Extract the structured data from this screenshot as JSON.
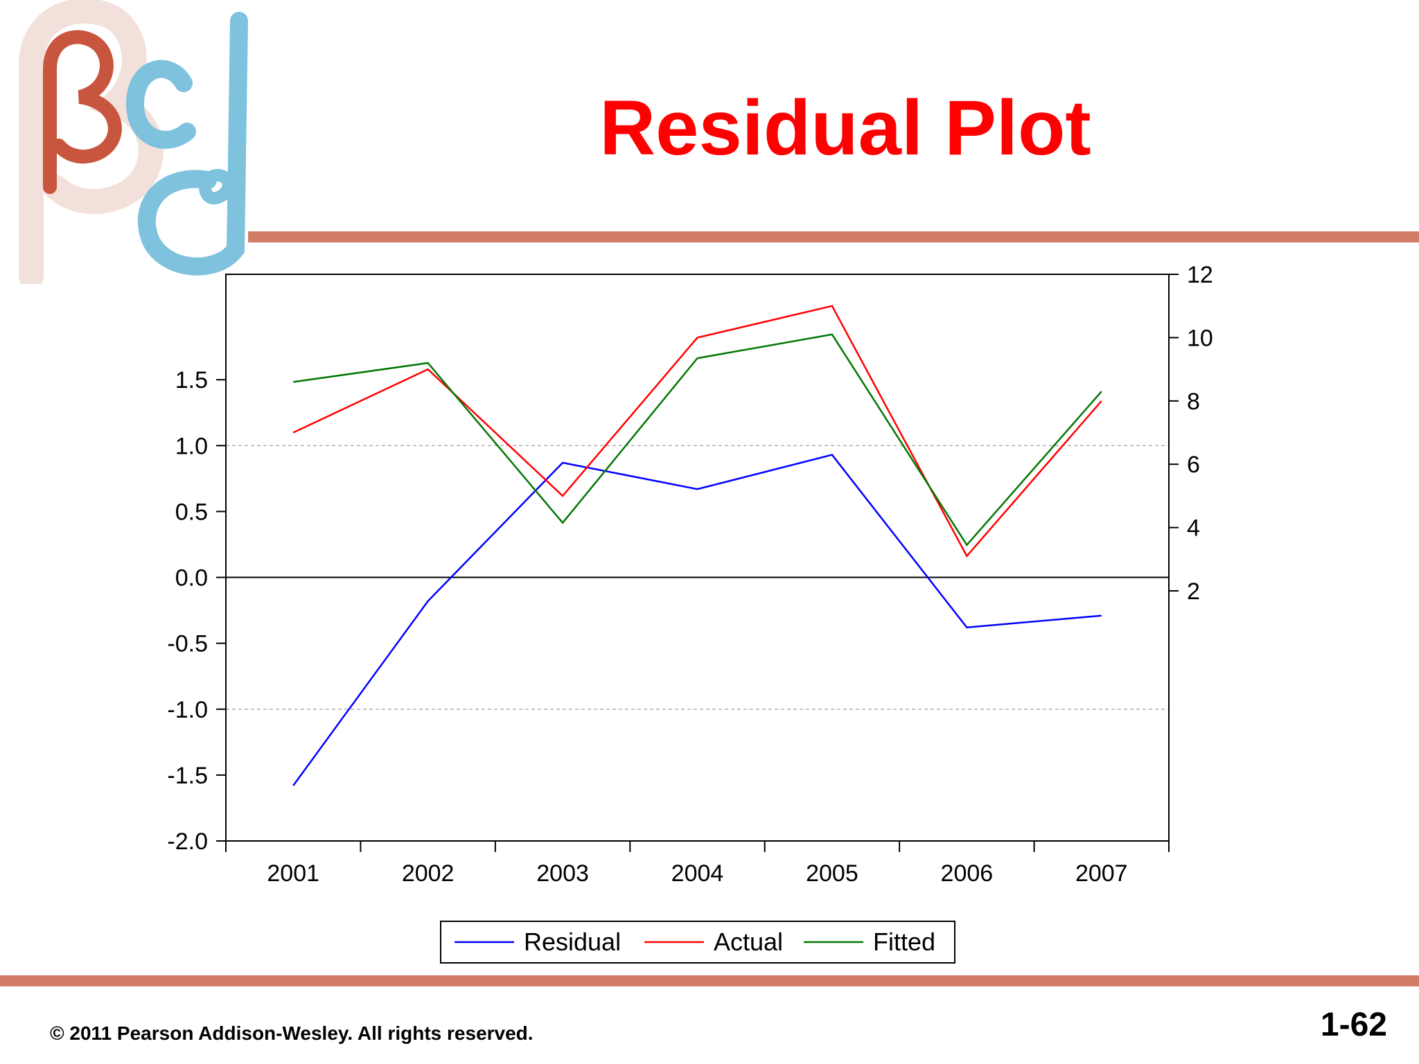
{
  "slide": {
    "title": "Residual Plot",
    "copyright": "© 2011 Pearson Addison-Wesley. All rights reserved.",
    "page_number": "1-62"
  },
  "logo": {
    "icon": "beta-logo-icon",
    "colors": {
      "beta": "#c8553d",
      "shadow": "#f2e0da",
      "blue": "#7fc2de"
    }
  },
  "colors": {
    "title": "#ff0000",
    "rule": "#d37c67"
  },
  "chart_data": {
    "type": "line",
    "x": [
      "2001",
      "2002",
      "2003",
      "2004",
      "2005",
      "2006",
      "2007"
    ],
    "left_axis": {
      "range": [
        -2.0,
        2.3
      ],
      "ticks": [
        "1.5",
        "1.0",
        "0.5",
        "0.0",
        "-0.5",
        "-1.0",
        "-1.5",
        "-2.0"
      ],
      "tick_values": [
        1.5,
        1.0,
        0.5,
        0.0,
        -0.5,
        -1.0,
        -1.5,
        -2.0
      ]
    },
    "right_axis": {
      "range": [
        -5.9,
        12
      ],
      "ticks": [
        "12",
        "10",
        "8",
        "6",
        "4",
        "2"
      ],
      "tick_values": [
        12,
        10,
        8,
        6,
        4,
        2
      ]
    },
    "grid": {
      "dashed_left_values": [
        1.0,
        -1.0
      ],
      "zero_line": 0.0
    },
    "series": [
      {
        "name": "Residual",
        "axis": "left",
        "color": "#0000ff",
        "values": [
          -1.58,
          -0.18,
          0.87,
          0.67,
          0.93,
          -0.38,
          -0.29
        ]
      },
      {
        "name": "Actual",
        "axis": "right",
        "color": "#ff0000",
        "values": [
          7.0,
          9.0,
          5.0,
          10.0,
          11.0,
          3.1,
          8.0
        ]
      },
      {
        "name": "Fitted",
        "axis": "right",
        "color": "#007700",
        "values": [
          8.6,
          9.2,
          4.15,
          9.35,
          10.1,
          3.45,
          8.3
        ]
      }
    ],
    "legend": {
      "position": "bottom-center",
      "entries": [
        "Residual",
        "Actual",
        "Fitted"
      ]
    }
  }
}
